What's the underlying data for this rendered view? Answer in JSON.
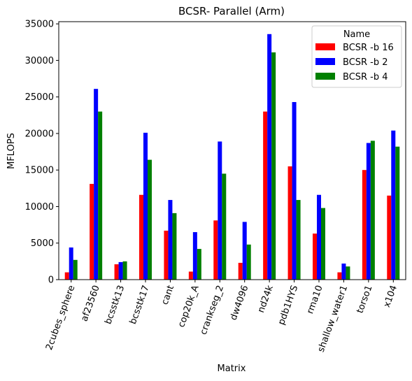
{
  "chart_data": {
    "type": "bar",
    "title": "BCSR- Parallel (Arm)",
    "xlabel": "Matrix",
    "ylabel": "MFLOPS",
    "ylim": [
      0,
      35300
    ],
    "yticks": [
      0,
      5000,
      10000,
      15000,
      20000,
      25000,
      30000,
      35000
    ],
    "grid": false,
    "legend": {
      "title": "Name",
      "placement": "top-right"
    },
    "categories": [
      "2cubes_sphere",
      "af23560",
      "bcsstk13",
      "bcsstk17",
      "cant",
      "cop20k_A",
      "crankseg_2",
      "dw4096",
      "nd24k",
      "pdb1HYS",
      "rma10",
      "shallow_water1",
      "torso1",
      "x104"
    ],
    "series": [
      {
        "name": "BCSR -b 16",
        "color": "#ff0000",
        "values": [
          1000,
          13100,
          2100,
          11600,
          6700,
          1100,
          8100,
          2300,
          23000,
          15500,
          6300,
          1000,
          15000,
          11500
        ]
      },
      {
        "name": "BCSR -b 2",
        "color": "#0000ff",
        "values": [
          4400,
          26100,
          2400,
          20100,
          10900,
          6500,
          18900,
          7900,
          33600,
          24300,
          11600,
          2200,
          18700,
          20400
        ]
      },
      {
        "name": "BCSR -b 4",
        "color": "#008000",
        "values": [
          2700,
          23000,
          2500,
          16400,
          9100,
          4200,
          14500,
          4800,
          31100,
          10900,
          9800,
          1800,
          19000,
          18200
        ]
      }
    ]
  }
}
